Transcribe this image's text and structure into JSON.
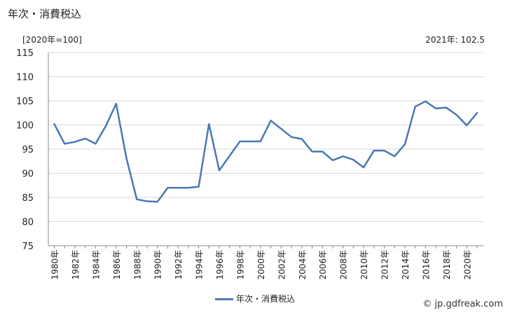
{
  "header": {
    "title": "年次・消費税込",
    "unit_label": "[2020年=100]",
    "latest_value": "2021年: 102.5"
  },
  "legend": {
    "label": "年次・消費税込"
  },
  "credit": "© jp.gdfreak.com",
  "colors": {
    "series": "#4a78b4",
    "grid": "#d9d9d9",
    "axis": "#888888"
  },
  "chart_data": {
    "type": "line",
    "title": "年次・消費税込",
    "ylabel": "[2020年=100]",
    "ylim": [
      75,
      115
    ],
    "yticks": [
      75,
      80,
      85,
      90,
      95,
      100,
      105,
      110,
      115
    ],
    "xlim": [
      1980,
      2021
    ],
    "xticks": [
      "1980年",
      "1982年",
      "1984年",
      "1986年",
      "1988年",
      "1990年",
      "1992年",
      "1994年",
      "1996年",
      "1998年",
      "2000年",
      "2002年",
      "2004年",
      "2006年",
      "2008年",
      "2010年",
      "2012年",
      "2014年",
      "2016年",
      "2018年",
      "2020年"
    ],
    "grid": true,
    "legend_position": "bottom",
    "series": [
      {
        "name": "年次・消費税込",
        "x": [
          1980,
          1981,
          1982,
          1983,
          1984,
          1985,
          1986,
          1987,
          1988,
          1989,
          1990,
          1991,
          1992,
          1993,
          1994,
          1995,
          1996,
          1997,
          1998,
          1999,
          2000,
          2001,
          2002,
          2003,
          2004,
          2005,
          2006,
          2007,
          2008,
          2009,
          2010,
          2011,
          2012,
          2013,
          2014,
          2015,
          2016,
          2017,
          2018,
          2019,
          2020,
          2021
        ],
        "y": [
          100.2,
          96.1,
          96.5,
          97.2,
          96.1,
          99.8,
          104.4,
          93.1,
          84.6,
          84.2,
          84.1,
          87.0,
          87.0,
          87.0,
          87.2,
          100.2,
          90.6,
          93.6,
          96.6,
          96.6,
          96.6,
          100.9,
          99.2,
          97.5,
          97.1,
          94.5,
          94.5,
          92.7,
          93.5,
          92.8,
          91.2,
          94.7,
          94.7,
          93.5,
          96.0,
          103.8,
          104.9,
          103.4,
          103.6,
          102.1,
          99.9,
          102.5
        ]
      }
    ]
  }
}
